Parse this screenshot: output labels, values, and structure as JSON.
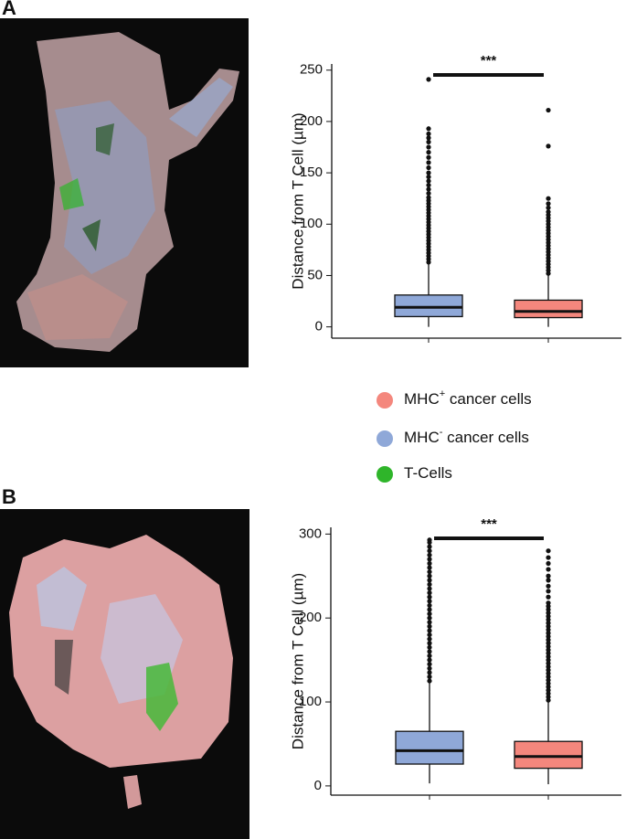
{
  "panels": [
    "A",
    "B"
  ],
  "legend": [
    {
      "label": "MHC",
      "sup": "+",
      "suffix": " cancer cells",
      "color": "#f4877d"
    },
    {
      "label": "MHC",
      "sup": "-",
      "suffix": " cancer cells",
      "color": "#8fa8d8"
    },
    {
      "label": "T-Cells",
      "color": "#2fb52a"
    }
  ],
  "chart_data": [
    {
      "type": "box",
      "ylabel": "Distance from T Cell (µm)",
      "annotation": "***",
      "ylim": [
        -11,
        256
      ],
      "yticks": [
        0,
        50,
        100,
        150,
        200,
        250
      ],
      "series": [
        {
          "color": "#8fa8d8",
          "whisker_low": 0,
          "q1": 10,
          "median": 19,
          "q3": 31,
          "whisker_high": 62,
          "outliers": [
            63,
            66,
            69,
            72,
            75,
            78,
            81,
            84,
            87,
            90,
            93,
            96,
            99,
            102,
            105,
            108,
            111,
            114,
            117,
            120,
            123,
            126,
            130,
            134,
            138,
            142,
            146,
            150,
            155,
            160,
            165,
            170,
            175,
            180,
            184,
            188,
            193,
            241
          ]
        },
        {
          "color": "#f4877d",
          "whisker_low": 0,
          "q1": 9,
          "median": 15,
          "q3": 26,
          "whisker_high": 51,
          "outliers": [
            52,
            55,
            58,
            61,
            64,
            67,
            70,
            73,
            76,
            79,
            82,
            85,
            88,
            91,
            94,
            97,
            100,
            103,
            106,
            109,
            112,
            116,
            120,
            125,
            176,
            211
          ]
        }
      ]
    },
    {
      "type": "box",
      "ylabel": "Distance from T Cell (µm)",
      "annotation": "***",
      "ylim": [
        -11,
        308
      ],
      "yticks": [
        0,
        100,
        200,
        300
      ],
      "series": [
        {
          "color": "#8fa8d8",
          "whisker_low": 3,
          "q1": 26,
          "median": 42,
          "q3": 65,
          "whisker_high": 123,
          "outliers": [
            125,
            130,
            135,
            140,
            145,
            150,
            155,
            160,
            165,
            170,
            175,
            180,
            185,
            190,
            195,
            200,
            205,
            210,
            215,
            220,
            225,
            230,
            235,
            240,
            245,
            250,
            255,
            260,
            265,
            270,
            275,
            280,
            285,
            290,
            293
          ]
        },
        {
          "color": "#f4877d",
          "whisker_low": 2,
          "q1": 21,
          "median": 35,
          "q3": 53,
          "whisker_high": 101,
          "outliers": [
            102,
            106,
            110,
            114,
            118,
            122,
            126,
            130,
            134,
            138,
            142,
            146,
            150,
            154,
            158,
            162,
            166,
            170,
            174,
            178,
            182,
            186,
            190,
            194,
            198,
            202,
            206,
            210,
            214,
            218,
            225,
            232,
            238,
            245,
            250,
            258,
            265,
            272,
            280
          ]
        }
      ]
    }
  ]
}
